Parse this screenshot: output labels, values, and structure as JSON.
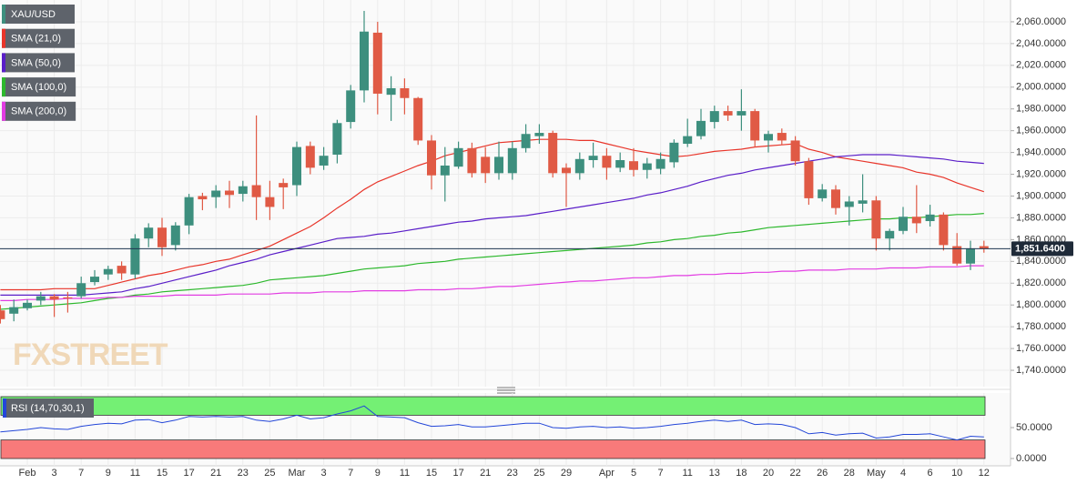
{
  "chart_data": [
    {
      "type": "candlestick",
      "name": "XAU/USD",
      "watermark": "FXSTREET",
      "categories": [
        null,
        null,
        "Feb",
        null,
        "3",
        null,
        "7",
        null,
        "9",
        null,
        "11",
        null,
        "15",
        null,
        "17",
        null,
        "21",
        null,
        "23",
        null,
        "25",
        null,
        "Mar",
        null,
        "3",
        null,
        "7",
        null,
        "9",
        null,
        "11",
        null,
        "15",
        null,
        "17",
        null,
        "21",
        null,
        "23",
        null,
        "25",
        null,
        "29",
        null,
        null,
        "Apr",
        null,
        "5",
        null,
        "7",
        null,
        "11",
        null,
        "13",
        null,
        "18",
        null,
        "20",
        null,
        "22",
        null,
        "26",
        null,
        "28",
        null,
        "May",
        null,
        "4",
        null,
        "6",
        null,
        "10",
        null,
        "12"
      ],
      "open": [
        1795,
        1792,
        1797,
        1804,
        1808,
        1807,
        1808,
        1821,
        1828,
        1836,
        1828,
        1861,
        1871,
        1855,
        1873,
        1900,
        1899,
        1905,
        1902,
        1910,
        1899,
        1912,
        1910,
        1946,
        1928,
        1938,
        1968,
        1997,
        2050,
        1993,
        1999,
        1990,
        1951,
        1919,
        1927,
        1944,
        1936,
        1921,
        1921,
        1944,
        1955,
        1958,
        1926,
        1921,
        1933,
        1937,
        1926,
        1932,
        1924,
        1925,
        1931,
        1948,
        1955,
        1968,
        1978,
        1974,
        1978,
        1951,
        1958,
        1951,
        1932,
        1898,
        1906,
        1890,
        1893,
        1896,
        1861,
        1868,
        1881,
        1877,
        1883,
        1854,
        1838,
        1854
      ],
      "high": [
        1800,
        1805,
        1805,
        1812,
        1810,
        1812,
        1826,
        1832,
        1836,
        1840,
        1865,
        1875,
        1880,
        1876,
        1902,
        1903,
        1910,
        1914,
        1914,
        1974,
        1914,
        1916,
        1950,
        1950,
        1945,
        1970,
        2002,
        2070,
        2060,
        2010,
        2008,
        1991,
        1956,
        1945,
        1950,
        1949,
        1945,
        1950,
        1950,
        1966,
        1966,
        1960,
        1930,
        1940,
        1949,
        1944,
        1940,
        1944,
        1935,
        1940,
        1952,
        1971,
        1980,
        1983,
        1983,
        1998,
        1980,
        1960,
        1962,
        1955,
        1935,
        1911,
        1910,
        1900,
        1920,
        1900,
        1870,
        1890,
        1910,
        1892,
        1885,
        1866,
        1859,
        1859
      ],
      "low": [
        1783,
        1785,
        1795,
        1800,
        1789,
        1793,
        1806,
        1818,
        1823,
        1823,
        1824,
        1853,
        1845,
        1850,
        1865,
        1887,
        1889,
        1889,
        1895,
        1878,
        1878,
        1888,
        1900,
        1920,
        1924,
        1930,
        1962,
        1986,
        1975,
        1969,
        1975,
        1947,
        1906,
        1895,
        1925,
        1917,
        1912,
        1915,
        1915,
        1940,
        1948,
        1917,
        1890,
        1915,
        1926,
        1915,
        1922,
        1918,
        1916,
        1920,
        1926,
        1945,
        1952,
        1962,
        1969,
        1960,
        1945,
        1940,
        1947,
        1928,
        1892,
        1895,
        1883,
        1873,
        1885,
        1850,
        1850,
        1865,
        1866,
        1872,
        1850,
        1836,
        1832,
        1848
      ],
      "close": [
        1787,
        1798,
        1802,
        1808,
        1805,
        1806,
        1820,
        1826,
        1833,
        1829,
        1861,
        1871,
        1853,
        1873,
        1899,
        1897,
        1905,
        1901,
        1909,
        1899,
        1890,
        1908,
        1945,
        1926,
        1937,
        1967,
        1997,
        2051,
        1994,
        1999,
        1990,
        1951,
        1919,
        1928,
        1944,
        1921,
        1921,
        1936,
        1944,
        1957,
        1958,
        1921,
        1921,
        1934,
        1937,
        1926,
        1933,
        1924,
        1930,
        1934,
        1949,
        1955,
        1969,
        1978,
        1974,
        1978,
        1951,
        1957,
        1951,
        1932,
        1898,
        1906,
        1889,
        1895,
        1896,
        1861,
        1868,
        1881,
        1875,
        1883,
        1855,
        1838,
        1852,
        1851.64
      ],
      "colors": {
        "up": "#3d8f7e",
        "down": "#e05a45"
      },
      "overlays": [
        {
          "name": "SMA (21,0)",
          "color": "#e8352a",
          "values": [
            1814,
            1814,
            1814,
            1814,
            1815,
            1815,
            1815,
            1815,
            1818,
            1821,
            1824,
            1827,
            1829,
            1832,
            1835,
            1837,
            1840,
            1842,
            1846,
            1850,
            1854,
            1860,
            1866,
            1872,
            1880,
            1889,
            1897,
            1906,
            1913,
            1918,
            1923,
            1928,
            1932,
            1937,
            1940,
            1943,
            1946,
            1949,
            1950,
            1951,
            1952,
            1952,
            1952,
            1951,
            1951,
            1948,
            1945,
            1942,
            1940,
            1938,
            1936,
            1937,
            1939,
            1941,
            1942,
            1943,
            1945,
            1946,
            1947,
            1948,
            1943,
            1940,
            1936,
            1934,
            1932,
            1930,
            1928,
            1926,
            1922,
            1920,
            1917,
            1912,
            1908,
            1904
          ]
        },
        {
          "name": "SMA (50,0)",
          "color": "#5a1ec8",
          "values": [
            1809,
            1809,
            1809,
            1809,
            1809,
            1809,
            1809,
            1810,
            1811,
            1812,
            1815,
            1817,
            1820,
            1823,
            1826,
            1829,
            1832,
            1836,
            1839,
            1842,
            1846,
            1849,
            1852,
            1855,
            1858,
            1861,
            1862,
            1863,
            1865,
            1866,
            1868,
            1870,
            1872,
            1874,
            1876,
            1877,
            1879,
            1880,
            1881,
            1882,
            1884,
            1886,
            1888,
            1890,
            1892,
            1894,
            1896,
            1898,
            1901,
            1903,
            1906,
            1909,
            1913,
            1916,
            1919,
            1921,
            1924,
            1926,
            1928,
            1930,
            1932,
            1934,
            1936,
            1937,
            1938,
            1938,
            1938,
            1937,
            1936,
            1935,
            1934,
            1932,
            1931,
            1930
          ]
        },
        {
          "name": "SMA (100,0)",
          "color": "#2db82d",
          "values": [
            1796,
            1797,
            1798,
            1799,
            1800,
            1801,
            1802,
            1804,
            1806,
            1807,
            1809,
            1810,
            1812,
            1813,
            1814,
            1815,
            1816,
            1817,
            1818,
            1820,
            1823,
            1824,
            1825,
            1826,
            1827,
            1829,
            1831,
            1833,
            1834,
            1835,
            1836,
            1838,
            1839,
            1840,
            1842,
            1843,
            1844,
            1845,
            1846,
            1847,
            1848,
            1849,
            1850,
            1851,
            1852,
            1853,
            1854,
            1855,
            1857,
            1858,
            1860,
            1861,
            1863,
            1864,
            1866,
            1867,
            1869,
            1871,
            1872,
            1873,
            1874,
            1875,
            1876,
            1877,
            1878,
            1879,
            1879,
            1880,
            1880,
            1881,
            1882,
            1883,
            1883,
            1884
          ]
        },
        {
          "name": "SMA (200,0)",
          "color": "#e23ce2",
          "values": [
            1804,
            1804,
            1805,
            1805,
            1805,
            1806,
            1806,
            1806,
            1807,
            1807,
            1808,
            1808,
            1808,
            1809,
            1809,
            1809,
            1809,
            1810,
            1810,
            1810,
            1810,
            1811,
            1811,
            1811,
            1812,
            1812,
            1812,
            1813,
            1813,
            1813,
            1813,
            1814,
            1814,
            1814,
            1815,
            1815,
            1816,
            1817,
            1817,
            1818,
            1819,
            1820,
            1821,
            1822,
            1822,
            1823,
            1824,
            1825,
            1825,
            1826,
            1827,
            1827,
            1828,
            1828,
            1829,
            1829,
            1830,
            1830,
            1831,
            1831,
            1832,
            1832,
            1832,
            1833,
            1833,
            1833,
            1834,
            1834,
            1834,
            1835,
            1835,
            1835,
            1836,
            1836
          ]
        }
      ],
      "last_price": {
        "value": 1851.64,
        "label": "1,851.6400"
      },
      "ylim": [
        1725,
        2080
      ],
      "yticks": [
        {
          "value": 1740,
          "label": "1,740.0000"
        },
        {
          "value": 1760,
          "label": "1,760.0000"
        },
        {
          "value": 1780,
          "label": "1,780.0000"
        },
        {
          "value": 1800,
          "label": "1,800.0000"
        },
        {
          "value": 1820,
          "label": "1,820.0000"
        },
        {
          "value": 1840,
          "label": "1,840.0000"
        },
        {
          "value": 1860,
          "label": "1,860.0000"
        },
        {
          "value": 1880,
          "label": "1,880.0000"
        },
        {
          "value": 1900,
          "label": "1,900.0000"
        },
        {
          "value": 1920,
          "label": "1,920.0000"
        },
        {
          "value": 1940,
          "label": "1,940.0000"
        },
        {
          "value": 1960,
          "label": "1,960.0000"
        },
        {
          "value": 1980,
          "label": "1,980.0000"
        },
        {
          "value": 2000,
          "label": "2,000.0000"
        },
        {
          "value": 2020,
          "label": "2,020.0000"
        },
        {
          "value": 2040,
          "label": "2,040.0000"
        },
        {
          "value": 2060,
          "label": "2,060.0000"
        }
      ],
      "grid": true
    },
    {
      "type": "line",
      "series": [
        {
          "name": "RSI (14,70,30,1)",
          "color": "#2346d8",
          "values": [
            43,
            45,
            47,
            50,
            48,
            47,
            52,
            55,
            57,
            56,
            62,
            63,
            58,
            62,
            68,
            67,
            68,
            67,
            68,
            62,
            60,
            64,
            70,
            64,
            66,
            72,
            77,
            85,
            68,
            67,
            66,
            58,
            52,
            53,
            55,
            51,
            51,
            53,
            55,
            57,
            57,
            50,
            49,
            51,
            52,
            50,
            51,
            49,
            50,
            52,
            55,
            57,
            60,
            62,
            60,
            62,
            55,
            56,
            55,
            50,
            40,
            42,
            38,
            40,
            41,
            33,
            35,
            39,
            39,
            40,
            35,
            30,
            36,
            35
          ]
        }
      ],
      "bands": [
        {
          "range": [
            70,
            100
          ],
          "color": "#74f074"
        },
        {
          "range": [
            0,
            30
          ],
          "color": "#f87a7a"
        }
      ],
      "ylim": [
        -11.8,
        105.9
      ],
      "yticks": [
        {
          "value": 50,
          "label": "50.0000"
        },
        {
          "value": 0,
          "label": "0.0000"
        }
      ]
    }
  ]
}
